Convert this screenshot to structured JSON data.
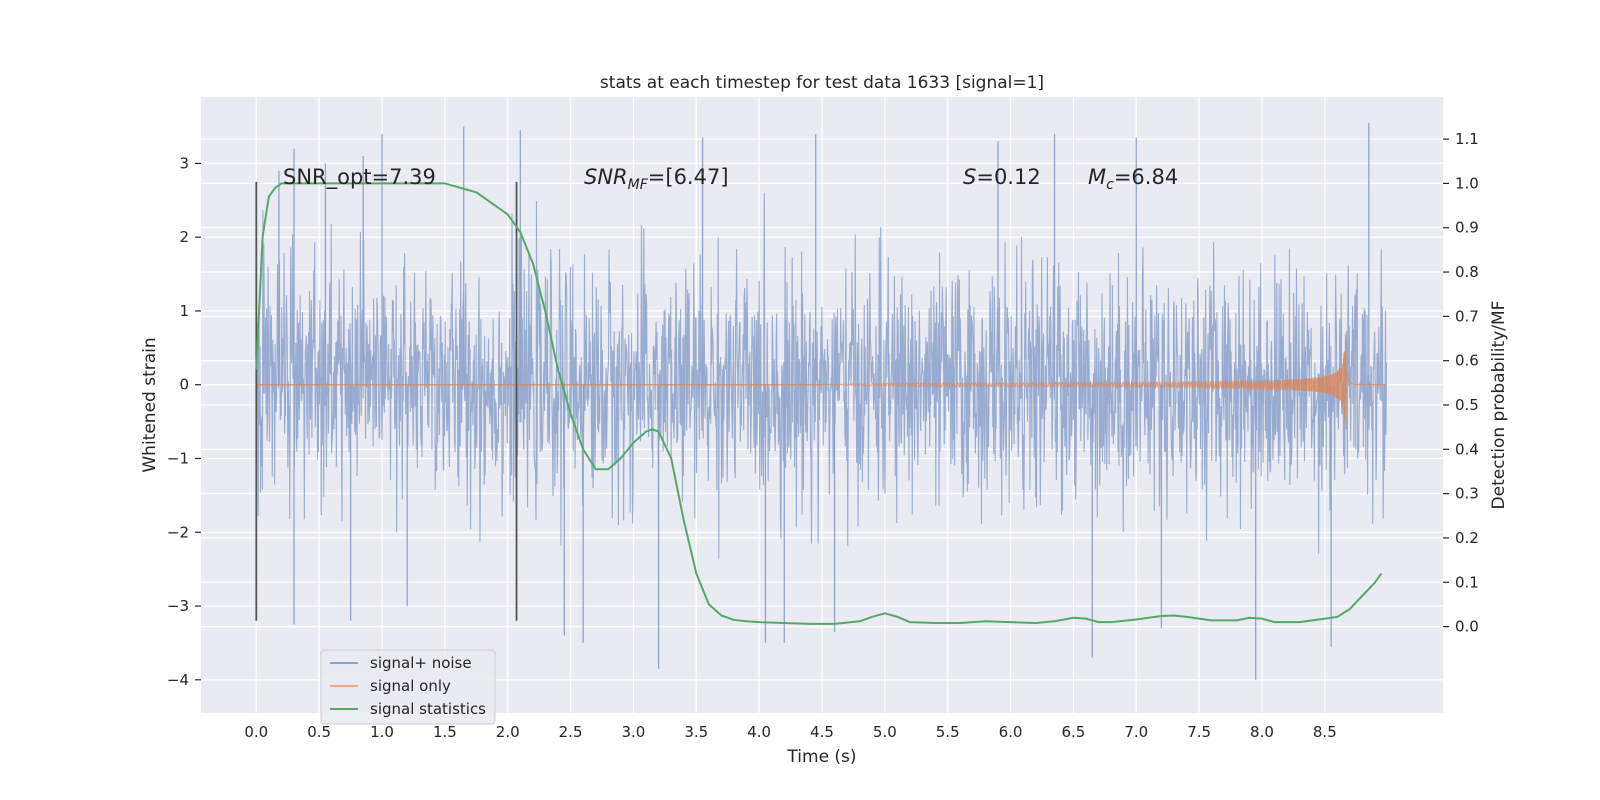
{
  "chart_data": {
    "type": "line",
    "title": "stats at each timestep for test data 1633 [signal=1]",
    "xlabel": "Time (s)",
    "ylabel": "Whitened strain",
    "y2label": "Detection probability/MF",
    "xlim": [
      -0.44,
      9.44
    ],
    "ylim": [
      -4.45,
      3.9
    ],
    "y2lim": [
      -0.195,
      1.195
    ],
    "x_ticks": [
      0.0,
      0.5,
      1.0,
      1.5,
      2.0,
      2.5,
      3.0,
      3.5,
      4.0,
      4.5,
      5.0,
      5.5,
      6.0,
      6.5,
      7.0,
      7.5,
      8.0,
      8.5
    ],
    "x_tick_labels": [
      "0.0",
      "0.5",
      "1.0",
      "1.5",
      "2.0",
      "2.5",
      "3.0",
      "3.5",
      "4.0",
      "4.5",
      "5.0",
      "5.5",
      "6.0",
      "6.5",
      "7.0",
      "7.5",
      "8.0",
      "8.5"
    ],
    "y_ticks": [
      -4,
      -3,
      -2,
      -1,
      0,
      1,
      2,
      3
    ],
    "y_tick_labels": [
      "−4",
      "−3",
      "−2",
      "−1",
      "0",
      "1",
      "2",
      "3"
    ],
    "y2_ticks": [
      0.0,
      0.1,
      0.2,
      0.3,
      0.4,
      0.5,
      0.6,
      0.7,
      0.8,
      0.9,
      1.0,
      1.1
    ],
    "y2_tick_labels": [
      "0.0",
      "0.1",
      "0.2",
      "0.3",
      "0.4",
      "0.5",
      "0.6",
      "0.7",
      "0.8",
      "0.9",
      "1.0",
      "1.1"
    ],
    "grid": true,
    "legend_position": "lower-left",
    "annotations": {
      "snr_opt": "SNR_opt=7.39",
      "snr_mf_main": "SNR",
      "snr_mf_sub": "MF",
      "snr_mf_value": "=[6.47]",
      "s_main": "S",
      "s_value": "=0.12",
      "mc_main": "M",
      "mc_sub": "c",
      "mc_value": "=6.84"
    },
    "vertical_markers": {
      "x": [
        0.0,
        2.07
      ],
      "y_range": [
        -3.2,
        2.75
      ]
    },
    "series": [
      {
        "name": "signal+ noise",
        "color": "#8fa4cc",
        "axis": "left",
        "description_style": "dense noise band",
        "x_range": [
          0.0,
          8.99
        ],
        "band": [
          -1.5,
          1.55
        ],
        "extremes": [
          [
            0.18,
            2.9
          ],
          [
            0.3,
            3.2
          ],
          [
            0.55,
            3.0
          ],
          [
            0.85,
            3.1
          ],
          [
            1.0,
            3.4
          ],
          [
            1.65,
            3.5
          ],
          [
            2.1,
            3.45
          ],
          [
            3.55,
            3.35
          ],
          [
            4.45,
            3.4
          ],
          [
            5.9,
            3.3
          ],
          [
            6.35,
            3.4
          ],
          [
            7.0,
            3.35
          ],
          [
            8.85,
            3.55
          ],
          [
            0.3,
            -3.25
          ],
          [
            0.75,
            -3.2
          ],
          [
            1.2,
            -3.0
          ],
          [
            2.45,
            -3.4
          ],
          [
            2.6,
            -3.5
          ],
          [
            3.2,
            -3.85
          ],
          [
            4.05,
            -3.5
          ],
          [
            4.2,
            -3.5
          ],
          [
            4.6,
            -3.35
          ],
          [
            6.65,
            -3.7
          ],
          [
            7.2,
            -3.3
          ],
          [
            7.95,
            -4.0
          ],
          [
            8.55,
            -3.55
          ]
        ]
      },
      {
        "name": "signal only",
        "color": "#dd8452",
        "axis": "left",
        "description_style": "chirp",
        "chirp_start": 4.5,
        "merger_time": 8.67,
        "peak": 1.05,
        "x_end": 8.99
      },
      {
        "name": "signal statistics",
        "color": "#55a868",
        "axis": "right",
        "x": [
          0.0,
          0.05,
          0.1,
          0.15,
          0.2,
          0.3,
          0.5,
          1.0,
          1.5,
          1.75,
          1.9,
          2.0,
          2.1,
          2.2,
          2.3,
          2.4,
          2.5,
          2.6,
          2.7,
          2.8,
          2.9,
          3.0,
          3.1,
          3.15,
          3.2,
          3.3,
          3.4,
          3.5,
          3.6,
          3.7,
          3.8,
          3.9,
          4.0,
          4.2,
          4.4,
          4.6,
          4.8,
          4.9,
          5.0,
          5.1,
          5.2,
          5.4,
          5.6,
          5.8,
          6.0,
          6.2,
          6.35,
          6.5,
          6.6,
          6.7,
          6.8,
          7.0,
          7.2,
          7.3,
          7.4,
          7.6,
          7.8,
          7.9,
          8.0,
          8.1,
          8.3,
          8.5,
          8.6,
          8.7,
          8.8,
          8.9,
          8.95
        ],
        "y": [
          0.58,
          0.88,
          0.97,
          0.99,
          1.0,
          1.0,
          1.0,
          1.0,
          1.0,
          0.98,
          0.95,
          0.93,
          0.89,
          0.82,
          0.71,
          0.58,
          0.48,
          0.4,
          0.355,
          0.355,
          0.38,
          0.415,
          0.44,
          0.445,
          0.44,
          0.38,
          0.24,
          0.12,
          0.05,
          0.025,
          0.015,
          0.012,
          0.01,
          0.008,
          0.006,
          0.006,
          0.012,
          0.022,
          0.03,
          0.022,
          0.01,
          0.008,
          0.008,
          0.012,
          0.01,
          0.008,
          0.012,
          0.02,
          0.018,
          0.01,
          0.01,
          0.016,
          0.024,
          0.025,
          0.022,
          0.014,
          0.014,
          0.02,
          0.018,
          0.01,
          0.01,
          0.018,
          0.022,
          0.04,
          0.07,
          0.1,
          0.12
        ]
      }
    ]
  }
}
